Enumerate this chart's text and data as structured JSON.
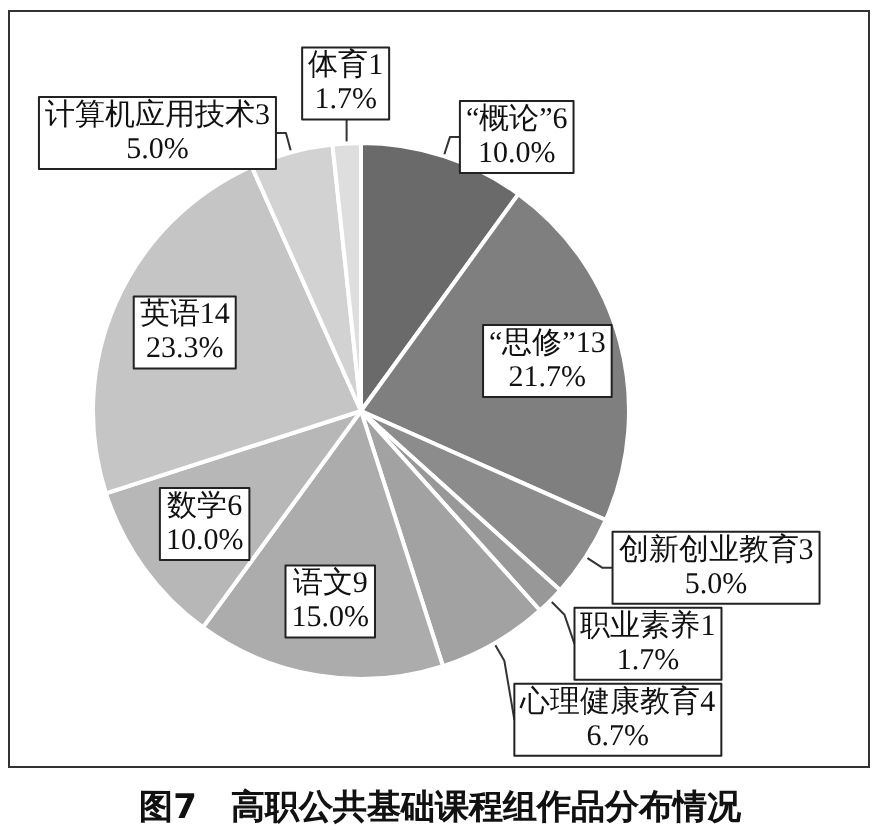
{
  "chart_data": {
    "type": "pie",
    "title": "图7　高职公共基础课程组作品分布情况",
    "categories": [
      "“概论”6",
      "“思修”13",
      "创新创业教育3",
      "职业素养1",
      "心理健康教育4",
      "语文9",
      "数学6",
      "英语14",
      "计算机应用技术3",
      "体育1"
    ],
    "values": [
      10.0,
      21.7,
      5.0,
      1.7,
      6.7,
      15.0,
      10.0,
      23.3,
      5.0,
      1.7
    ],
    "value_labels": [
      "10.0%",
      "21.7%",
      "5.0%",
      "1.7%",
      "6.7%",
      "15.0%",
      "10.0%",
      "23.3%",
      "5.0%",
      "1.7%"
    ],
    "colors": [
      "#6a6a6a",
      "#7f7f7f",
      "#8c8c8c",
      "#989898",
      "#a2a2a2",
      "#acacac",
      "#b7b7b7",
      "#c5c5c5",
      "#d2d2d2",
      "#dedede"
    ],
    "legend": false
  }
}
